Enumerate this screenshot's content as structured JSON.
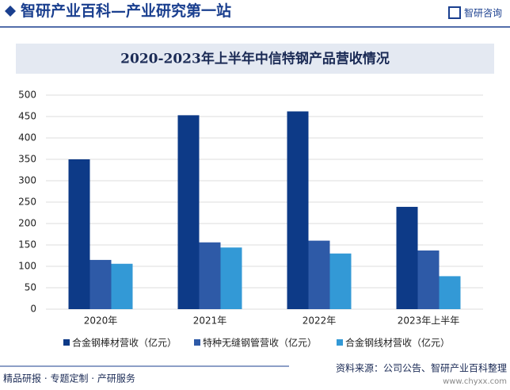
{
  "header": {
    "title": "智研产业百科—产业研究第一站",
    "logo": "智研咨询"
  },
  "chart_data": {
    "type": "bar",
    "title": "2020-2023年上半年中信特钢产品营收情况",
    "categories": [
      "2020年",
      "2021年",
      "2022年",
      "2023年上半年"
    ],
    "series": [
      {
        "name": "合金钢棒材营收（亿元）",
        "color": "#0d3a87",
        "values": [
          350,
          453,
          462,
          239
        ]
      },
      {
        "name": "特种无缝钢管营收（亿元）",
        "color": "#2e5aa7",
        "values": [
          115,
          156,
          160,
          137
        ]
      },
      {
        "name": "合金钢线材营收（亿元）",
        "color": "#3399d6",
        "values": [
          106,
          144,
          130,
          77
        ]
      }
    ],
    "ylim": [
      0,
      500
    ],
    "yticks": [
      0,
      50,
      100,
      150,
      200,
      250,
      300,
      350,
      400,
      450,
      500
    ],
    "grid": true
  },
  "footer": {
    "left": "精品研报 · 专题定制 · 产研服务",
    "source": "资料来源：公司公告、智研产业百科整理",
    "url": "www.chyxx.com"
  }
}
